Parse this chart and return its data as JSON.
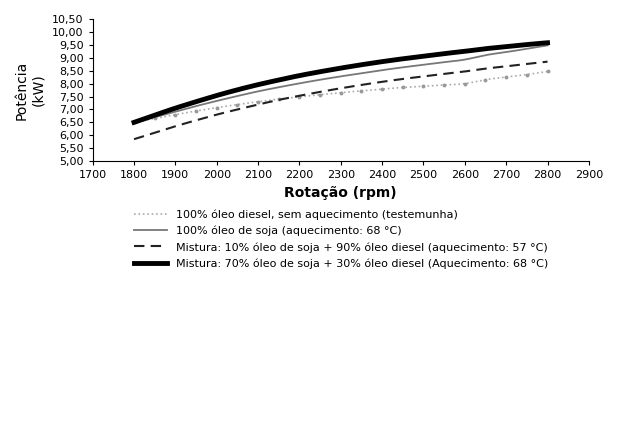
{
  "xlabel": "Rotação (rpm)",
  "ylabel": "Potência\n(kW)",
  "xlim": [
    1700,
    2900
  ],
  "ylim": [
    5.0,
    10.5
  ],
  "yticks": [
    5.0,
    5.5,
    6.0,
    6.5,
    7.0,
    7.5,
    8.0,
    8.5,
    9.0,
    9.5,
    10.0,
    10.5
  ],
  "xticks": [
    1700,
    1800,
    1900,
    2000,
    2100,
    2200,
    2300,
    2400,
    2500,
    2600,
    2700,
    2800,
    2900
  ],
  "rpm": [
    1800,
    1850,
    1900,
    1950,
    2000,
    2050,
    2100,
    2150,
    2200,
    2250,
    2300,
    2350,
    2400,
    2450,
    2500,
    2550,
    2600,
    2650,
    2700,
    2750,
    2800
  ],
  "series": {
    "diesel_control": [
      6.5,
      6.65,
      6.8,
      6.94,
      7.07,
      7.19,
      7.3,
      7.4,
      7.49,
      7.57,
      7.65,
      7.72,
      7.79,
      7.85,
      7.9,
      7.95,
      8.0,
      8.15,
      8.25,
      8.35,
      8.47
    ],
    "soja_100": [
      6.5,
      6.7,
      6.92,
      7.13,
      7.33,
      7.52,
      7.7,
      7.86,
      8.01,
      8.15,
      8.28,
      8.4,
      8.52,
      8.63,
      8.73,
      8.83,
      8.93,
      9.1,
      9.22,
      9.35,
      9.48
    ],
    "mix_10_90": [
      5.85,
      6.1,
      6.35,
      6.58,
      6.8,
      7.0,
      7.19,
      7.37,
      7.53,
      7.68,
      7.82,
      7.95,
      8.07,
      8.18,
      8.28,
      8.38,
      8.47,
      8.58,
      8.67,
      8.76,
      8.85
    ],
    "mix_70_30": [
      6.5,
      6.78,
      7.05,
      7.3,
      7.54,
      7.76,
      7.96,
      8.14,
      8.31,
      8.46,
      8.6,
      8.73,
      8.85,
      8.96,
      9.06,
      9.16,
      9.25,
      9.35,
      9.43,
      9.51,
      9.58
    ]
  },
  "legend": [
    "100% óleo diesel, sem aquecimento (testemunha)",
    "100% óleo de soja (aquecimento: 68 °C)",
    "Mistura: 10% óleo de soja + 90% óleo diesel (aquecimento: 57 °C)",
    "Mistura: 70% óleo de soja + 30% óleo diesel (Aquecimento: 68 °C)"
  ],
  "background_color": "#ffffff"
}
